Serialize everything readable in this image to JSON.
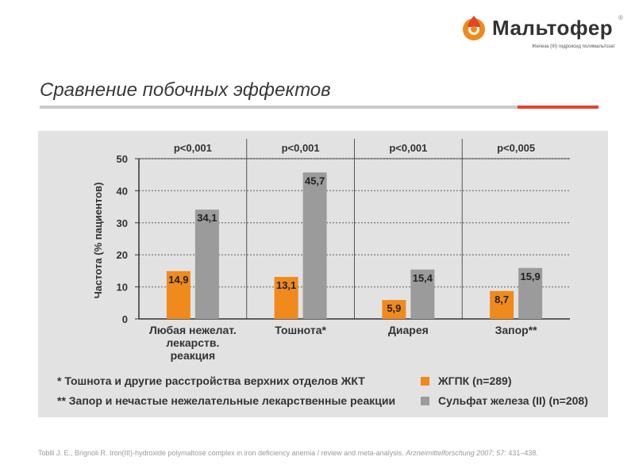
{
  "brand": {
    "name": "Мальтофер",
    "registered": "®",
    "tagline": "Железа (III) гидроксид полимальтозат",
    "colors": {
      "orange": "#f08a1c",
      "red": "#e2452a"
    }
  },
  "slide": {
    "title": "Сравнение побочных эффектов"
  },
  "chart_data": {
    "type": "bar",
    "title": "",
    "ylabel": "Частота (% пациентов)",
    "xlabel": "",
    "ylim": [
      0,
      50
    ],
    "yticks": [
      0,
      10,
      20,
      30,
      40,
      50
    ],
    "grid": true,
    "categories": [
      {
        "lines": [
          "Любая нежелат.",
          "лекарств.",
          "реакция"
        ]
      },
      {
        "lines": [
          "Тошнота*"
        ]
      },
      {
        "lines": [
          "Диарея"
        ]
      },
      {
        "lines": [
          "Запор**"
        ]
      }
    ],
    "pvalues": [
      "p<0,001",
      "p<0,001",
      "p<0,001",
      "p<0,005"
    ],
    "series": [
      {
        "name": "ЖГПК (n=289)",
        "color": "#f08a1c",
        "values": [
          14.9,
          13.1,
          5.9,
          8.7
        ],
        "labels": [
          "14,9",
          "13,1",
          "5,9",
          "8,7"
        ]
      },
      {
        "name": "Сульфат железа (II) (n=208)",
        "color": "#9b9b9b",
        "values": [
          34.1,
          45.7,
          15.4,
          15.9
        ],
        "labels": [
          "34,1",
          "45,7",
          "15,4",
          "15,9"
        ]
      }
    ],
    "legend_position": "bottom-right"
  },
  "footnotes": [
    "* Тошнота и другие расстройства верхних отделов ЖКТ",
    "** Запор и нечастые нежелательные лекарственные реакции"
  ],
  "citation": {
    "text": "Toblli J. E., Brignoli R. Iron(III)-hydroxide polymaltose complex in iron deficiency anemia / review and meta-analysis.",
    "journal": "Arzneimittelforschung 2007; 57:",
    "pages": "431–438."
  }
}
